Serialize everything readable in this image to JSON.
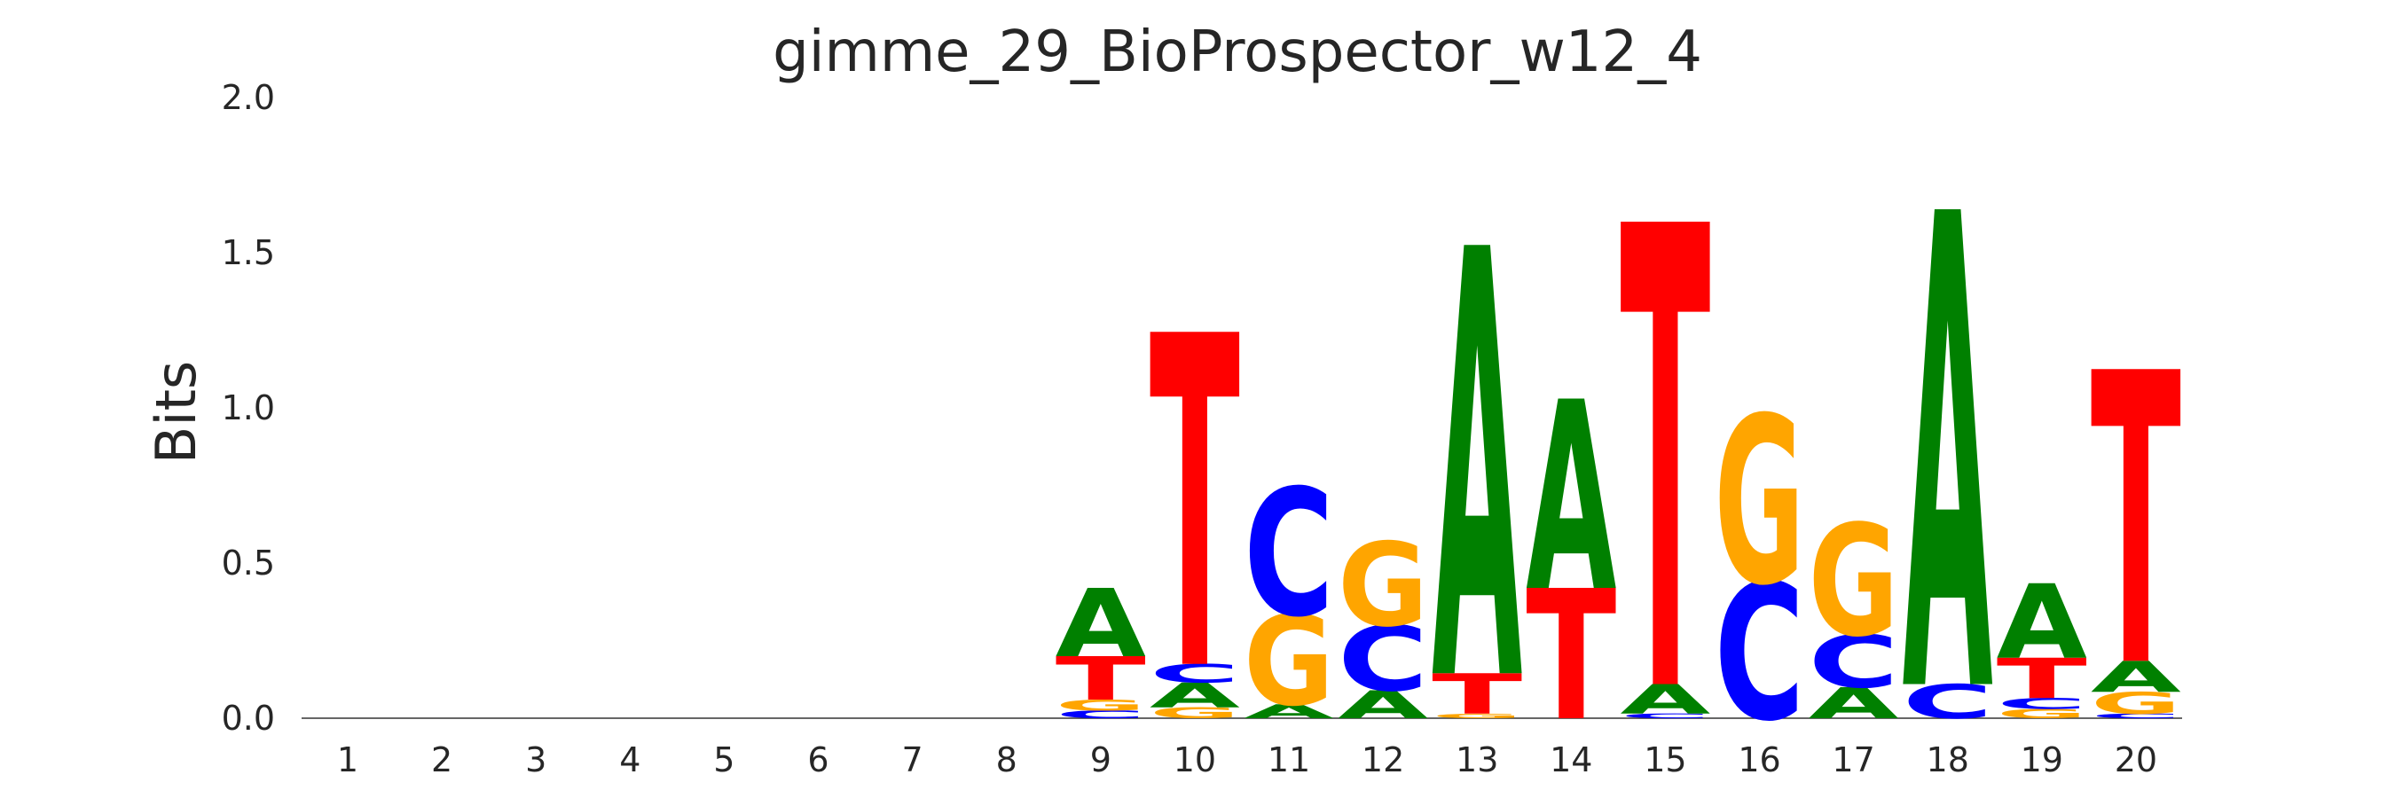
{
  "chart_data": {
    "type": "sequence-logo",
    "title": "gimme_29_BioProspector_w12_4",
    "ylabel": "Bits",
    "xlabel": "",
    "ylim": [
      0,
      2
    ],
    "yticks": [
      "0.0",
      "0.5",
      "1.0",
      "1.5",
      "2.0"
    ],
    "ytick_values": [
      0,
      0.5,
      1.0,
      1.5,
      2.0
    ],
    "positions": [
      "1",
      "2",
      "3",
      "4",
      "5",
      "6",
      "7",
      "8",
      "9",
      "10",
      "11",
      "12",
      "13",
      "14",
      "15",
      "16",
      "17",
      "18",
      "19",
      "20"
    ],
    "colors": {
      "A": "#008000",
      "C": "#0000ff",
      "G": "#ffa500",
      "T": "#ff0000"
    },
    "stacks": [
      [],
      [],
      [],
      [],
      [],
      [],
      [],
      [],
      [
        {
          "base": "C",
          "value": 0.025
        },
        {
          "base": "G",
          "value": 0.035
        },
        {
          "base": "T",
          "value": 0.14
        },
        {
          "base": "A",
          "value": 0.22
        }
      ],
      [
        {
          "base": "G",
          "value": 0.035
        },
        {
          "base": "A",
          "value": 0.08
        },
        {
          "base": "C",
          "value": 0.06
        },
        {
          "base": "T",
          "value": 1.07
        }
      ],
      [
        {
          "base": "A",
          "value": 0.045
        },
        {
          "base": "G",
          "value": 0.29
        },
        {
          "base": "C",
          "value": 0.41
        }
      ],
      [
        {
          "base": "A",
          "value": 0.09
        },
        {
          "base": "C",
          "value": 0.21
        },
        {
          "base": "G",
          "value": 0.27
        }
      ],
      [
        {
          "base": "G",
          "value": 0.015
        },
        {
          "base": "T",
          "value": 0.13
        },
        {
          "base": "A",
          "value": 1.38
        }
      ],
      [
        {
          "base": "T",
          "value": 0.42
        },
        {
          "base": "A",
          "value": 0.61
        }
      ],
      [
        {
          "base": "C",
          "value": 0.015
        },
        {
          "base": "A",
          "value": 0.095
        },
        {
          "base": "T",
          "value": 1.49
        }
      ],
      [
        {
          "base": "C",
          "value": 0.44
        },
        {
          "base": "G",
          "value": 0.54
        }
      ],
      [
        {
          "base": "A",
          "value": 0.1
        },
        {
          "base": "C",
          "value": 0.17
        },
        {
          "base": "G",
          "value": 0.36
        }
      ],
      [
        {
          "base": "C",
          "value": 0.11
        },
        {
          "base": "A",
          "value": 1.53
        }
      ],
      [
        {
          "base": "G",
          "value": 0.03
        },
        {
          "base": "C",
          "value": 0.035
        },
        {
          "base": "T",
          "value": 0.13
        },
        {
          "base": "A",
          "value": 0.24
        }
      ],
      [
        {
          "base": "C",
          "value": 0.015
        },
        {
          "base": "G",
          "value": 0.07
        },
        {
          "base": "A",
          "value": 0.1
        },
        {
          "base": "T",
          "value": 0.94
        }
      ]
    ]
  }
}
